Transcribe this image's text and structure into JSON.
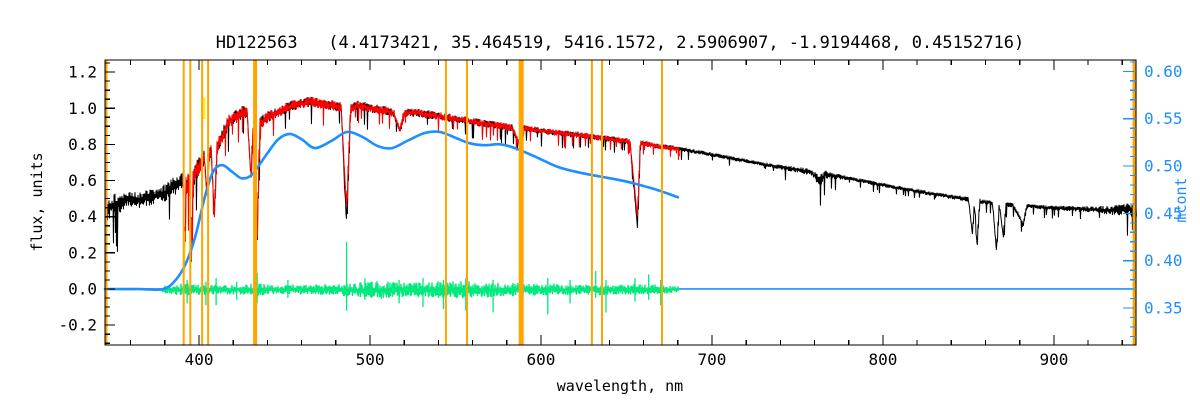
{
  "figure": {
    "title": "HD122563   (4.4173421, 35.464519, 5416.1572, 2.5906907, -1.9194468, 0.45152716)"
  },
  "chart_data": {
    "type": "line",
    "title": "HD122563   (4.4173421, 35.464519, 5416.1572, 2.5906907, -1.9194468, 0.45152716)",
    "xlabel": "wavelength, nm",
    "ylabel_left": "flux, units",
    "ylabel_right": "mcont",
    "xlim": [
      345,
      948
    ],
    "ylim_left": [
      -0.31,
      1.267
    ],
    "ylim_right": [
      0.311,
      0.612
    ],
    "grid": false,
    "legend": "none",
    "axes": {
      "x_major_ticks": [
        400,
        500,
        600,
        700,
        800,
        900
      ],
      "x_minor_step": 20,
      "y_left_major_ticks": [
        -0.2,
        0.0,
        0.2,
        0.4,
        0.6,
        0.8,
        1.0,
        1.2
      ],
      "y_left_minor_step": 0.05,
      "y_right_major_ticks": [
        0.35,
        0.4,
        0.45,
        0.5,
        0.55,
        0.6
      ],
      "y_right_minor_step": 0.01
    },
    "colors": {
      "observed": "#000000",
      "model": "#ff0000",
      "continuum": "#1e8fff",
      "residuals": "#00e97c",
      "markers": "#ffa500",
      "masked": "#ffe800",
      "axis_right": "#1e8fff"
    },
    "series": [
      {
        "name": "observed_spectrum",
        "color": "#000000",
        "axis": "left",
        "x_range": [
          345,
          948
        ],
        "anchors": [
          [
            345,
            0.46
          ],
          [
            352,
            0.48
          ],
          [
            358,
            0.51
          ],
          [
            365,
            0.5
          ],
          [
            372,
            0.52
          ],
          [
            378,
            0.53
          ],
          [
            383,
            0.56
          ],
          [
            388,
            0.6
          ],
          [
            390.5,
            0.62
          ],
          [
            391.4,
            0.1
          ],
          [
            392.3,
            0.58
          ],
          [
            394.5,
            0.6
          ],
          [
            395.4,
            0.13
          ],
          [
            396.4,
            0.62
          ],
          [
            398,
            0.66
          ],
          [
            400,
            0.69
          ],
          [
            403,
            0.74
          ],
          [
            404.5,
            0.52
          ],
          [
            405.5,
            0.74
          ],
          [
            407,
            0.77
          ],
          [
            408.8,
            0.42
          ],
          [
            410.5,
            0.79
          ],
          [
            413,
            0.84
          ],
          [
            417,
            0.93
          ],
          [
            421,
            0.96
          ],
          [
            425,
            0.98
          ],
          [
            428,
            0.98
          ],
          [
            430.3,
            0.62
          ],
          [
            431.5,
            0.88
          ],
          [
            433.9,
            0.3
          ],
          [
            435.5,
            0.92
          ],
          [
            438,
            0.94
          ],
          [
            442,
            0.97
          ],
          [
            447,
            0.99
          ],
          [
            452,
            1.01
          ],
          [
            458,
            1.03
          ],
          [
            465,
            1.04
          ],
          [
            472,
            1.03
          ],
          [
            478,
            1.02
          ],
          [
            483,
            1.01
          ],
          [
            486.2,
            0.35
          ],
          [
            488.5,
            1.0
          ],
          [
            493,
            1.02
          ],
          [
            498,
            1.01
          ],
          [
            504,
            1.0
          ],
          [
            510,
            0.99
          ],
          [
            514,
            0.97
          ],
          [
            517.3,
            0.88
          ],
          [
            520,
            0.98
          ],
          [
            526,
            0.98
          ],
          [
            532,
            0.97
          ],
          [
            538,
            0.965
          ],
          [
            544,
            0.955
          ],
          [
            550,
            0.945
          ],
          [
            557,
            0.935
          ],
          [
            563,
            0.925
          ],
          [
            570,
            0.915
          ],
          [
            577,
            0.905
          ],
          [
            583,
            0.895
          ],
          [
            588.3,
            0.78
          ],
          [
            590,
            0.89
          ],
          [
            595,
            0.885
          ],
          [
            600,
            0.88
          ],
          [
            607,
            0.87
          ],
          [
            615,
            0.862
          ],
          [
            622,
            0.855
          ],
          [
            630,
            0.845
          ],
          [
            638,
            0.835
          ],
          [
            646,
            0.825
          ],
          [
            652,
            0.818
          ],
          [
            656.3,
            0.34
          ],
          [
            658,
            0.81
          ],
          [
            664,
            0.8
          ],
          [
            670,
            0.79
          ],
          [
            676,
            0.783
          ],
          [
            682,
            0.775
          ],
          [
            690,
            0.762
          ],
          [
            700,
            0.745
          ],
          [
            710,
            0.727
          ],
          [
            720,
            0.71
          ],
          [
            730,
            0.693
          ],
          [
            740,
            0.677
          ],
          [
            750,
            0.662
          ],
          [
            758,
            0.65
          ],
          [
            763,
            0.6
          ],
          [
            766,
            0.637
          ],
          [
            775,
            0.623
          ],
          [
            785,
            0.605
          ],
          [
            795,
            0.586
          ],
          [
            805,
            0.568
          ],
          [
            815,
            0.551
          ],
          [
            825,
            0.535
          ],
          [
            835,
            0.519
          ],
          [
            845,
            0.505
          ],
          [
            850,
            0.497
          ],
          [
            852.2,
            0.3
          ],
          [
            853.5,
            0.492
          ],
          [
            854.8,
            0.22
          ],
          [
            856.5,
            0.488
          ],
          [
            860,
            0.483
          ],
          [
            864,
            0.478
          ],
          [
            866.3,
            0.21
          ],
          [
            868,
            0.474
          ],
          [
            870.2,
            0.29
          ],
          [
            872,
            0.47
          ],
          [
            876,
            0.466
          ],
          [
            882,
            0.36
          ],
          [
            884,
            0.461
          ],
          [
            890,
            0.457
          ],
          [
            896,
            0.453
          ],
          [
            902,
            0.45
          ],
          [
            910,
            0.447
          ],
          [
            918,
            0.444
          ],
          [
            926,
            0.442
          ],
          [
            934,
            0.44
          ],
          [
            941,
            0.445
          ],
          [
            945,
            0.45
          ],
          [
            948,
            0.43
          ]
        ],
        "noise": [
          [
            345,
            0.08
          ],
          [
            360,
            0.05
          ],
          [
            375,
            0.05
          ],
          [
            385,
            0.055
          ],
          [
            392,
            0.065
          ],
          [
            400,
            0.05
          ],
          [
            410,
            0.042
          ],
          [
            425,
            0.04
          ],
          [
            440,
            0.035
          ],
          [
            460,
            0.03
          ],
          [
            480,
            0.03
          ],
          [
            500,
            0.028
          ],
          [
            520,
            0.025
          ],
          [
            545,
            0.025
          ],
          [
            570,
            0.022
          ],
          [
            600,
            0.02
          ],
          [
            630,
            0.018
          ],
          [
            655,
            0.018
          ],
          [
            680,
            0.015
          ],
          [
            700,
            0.013
          ],
          [
            730,
            0.012
          ],
          [
            758,
            0.02
          ],
          [
            763,
            0.035
          ],
          [
            768,
            0.02
          ],
          [
            780,
            0.012
          ],
          [
            800,
            0.012
          ],
          [
            830,
            0.013
          ],
          [
            850,
            0.015
          ],
          [
            870,
            0.015
          ],
          [
            890,
            0.013
          ],
          [
            910,
            0.015
          ],
          [
            925,
            0.02
          ],
          [
            940,
            0.035
          ],
          [
            948,
            0.05
          ]
        ]
      },
      {
        "name": "model_spectrum",
        "color": "#ff0000",
        "axis": "left",
        "x_range": [
          390.5,
          681
        ],
        "overrides": [
          [
            391.4,
            0.14
          ],
          [
            395.4,
            0.16
          ],
          [
            486.2,
            0.44
          ],
          [
            656.3,
            0.4
          ]
        ]
      },
      {
        "name": "continuum_mcont",
        "color": "#1e8fff",
        "axis": "right",
        "points": [
          [
            345,
            0.37
          ],
          [
            365,
            0.37
          ],
          [
            379,
            0.37
          ],
          [
            386,
            0.379
          ],
          [
            392,
            0.396
          ],
          [
            397.7,
            0.425
          ],
          [
            403.5,
            0.468
          ],
          [
            408.2,
            0.494
          ],
          [
            413.5,
            0.501
          ],
          [
            419.3,
            0.494
          ],
          [
            425.1,
            0.487
          ],
          [
            431,
            0.491
          ],
          [
            438.6,
            0.51
          ],
          [
            446.2,
            0.528
          ],
          [
            453.2,
            0.534
          ],
          [
            460.2,
            0.528
          ],
          [
            467.8,
            0.519
          ],
          [
            477.8,
            0.527
          ],
          [
            486.5,
            0.536
          ],
          [
            495.3,
            0.531
          ],
          [
            504.7,
            0.521
          ],
          [
            512.9,
            0.519
          ],
          [
            522.2,
            0.527
          ],
          [
            532.2,
            0.535
          ],
          [
            540.9,
            0.536
          ],
          [
            549.7,
            0.53
          ],
          [
            558.5,
            0.524
          ],
          [
            567.2,
            0.522
          ],
          [
            576,
            0.523
          ],
          [
            584.8,
            0.519
          ],
          [
            596.5,
            0.51
          ],
          [
            610,
            0.499
          ],
          [
            622.8,
            0.493
          ],
          [
            634.5,
            0.489
          ],
          [
            649.1,
            0.484
          ],
          [
            663.7,
            0.477
          ],
          [
            672.5,
            0.472
          ],
          [
            680.1,
            0.467
          ]
        ]
      },
      {
        "name": "residuals",
        "color": "#00e97c",
        "axis": "left",
        "x_range": [
          377.5,
          680.5
        ],
        "noise": [
          [
            377.5,
            0.018
          ],
          [
            385,
            0.03
          ],
          [
            392,
            0.035
          ],
          [
            400,
            0.03
          ],
          [
            412,
            0.028
          ],
          [
            425,
            0.03
          ],
          [
            434,
            0.035
          ],
          [
            445,
            0.025
          ],
          [
            460,
            0.028
          ],
          [
            475,
            0.03
          ],
          [
            486,
            0.04
          ],
          [
            495,
            0.042
          ],
          [
            505,
            0.05
          ],
          [
            515,
            0.045
          ],
          [
            525,
            0.04
          ],
          [
            535,
            0.045
          ],
          [
            545,
            0.05
          ],
          [
            555,
            0.05
          ],
          [
            565,
            0.045
          ],
          [
            575,
            0.04
          ],
          [
            585,
            0.038
          ],
          [
            595,
            0.035
          ],
          [
            605,
            0.035
          ],
          [
            615,
            0.03
          ],
          [
            625,
            0.028
          ],
          [
            635,
            0.032
          ],
          [
            645,
            0.03
          ],
          [
            655,
            0.032
          ],
          [
            665,
            0.028
          ],
          [
            675,
            0.022
          ],
          [
            680.5,
            0.02
          ]
        ],
        "spikes": [
          [
            393,
            0.05,
            0.08
          ],
          [
            404,
            0.04,
            0.09
          ],
          [
            410,
            0.06,
            0.09
          ],
          [
            422,
            0.04,
            0.06
          ],
          [
            434,
            0.09,
            0.08
          ],
          [
            452,
            0.05,
            0.05
          ],
          [
            486.3,
            0.26,
            0.12
          ],
          [
            497,
            0.06,
            0.06
          ],
          [
            517,
            0.05,
            0.08
          ],
          [
            531,
            0.06,
            0.1
          ],
          [
            543,
            0.05,
            0.11
          ],
          [
            556,
            0.06,
            0.12
          ],
          [
            572,
            0.05,
            0.13
          ],
          [
            589,
            0.08,
            0.12
          ],
          [
            604,
            0.06,
            0.14
          ],
          [
            617,
            0.05,
            0.08
          ],
          [
            632,
            0.1,
            0.05
          ],
          [
            638,
            0.05,
            0.13
          ],
          [
            655,
            0.06,
            0.07
          ],
          [
            663,
            0.08,
            0.06
          ],
          [
            670,
            0.05,
            0.09
          ]
        ]
      },
      {
        "name": "zero_level_line",
        "color": "#1e8fff",
        "axis": "left",
        "flux": 0.0,
        "segments": [
          [
            345,
            378.5
          ],
          [
            680.5,
            948
          ]
        ],
        "dashed_overlay_range": [
          346,
          377.5
        ]
      }
    ],
    "line_markers": {
      "color": "#ffa500",
      "wavelengths": [
        {
          "wl": 345.6,
          "w": 3
        },
        {
          "wl": 391.0,
          "w": 2
        },
        {
          "wl": 394.9,
          "w": 2
        },
        {
          "wl": 401.8,
          "w": 2
        },
        {
          "wl": 405.3,
          "w": 2
        },
        {
          "wl": 432.8,
          "w": 4
        },
        {
          "wl": 544.4,
          "w": 2
        },
        {
          "wl": 556.7,
          "w": 2
        },
        {
          "wl": 588.4,
          "w": 5
        },
        {
          "wl": 629.8,
          "w": 2
        },
        {
          "wl": 635.7,
          "w": 2
        },
        {
          "wl": 670.8,
          "w": 2
        },
        {
          "wl": 947.2,
          "w": 4
        }
      ]
    },
    "masked_strips": [
      [
        391.4,
        0.1,
        0.32
      ],
      [
        394.9,
        0.11,
        0.27
      ],
      [
        403.1,
        0.94,
        1.06
      ],
      [
        588.1,
        0.83,
        0.95
      ]
    ]
  }
}
